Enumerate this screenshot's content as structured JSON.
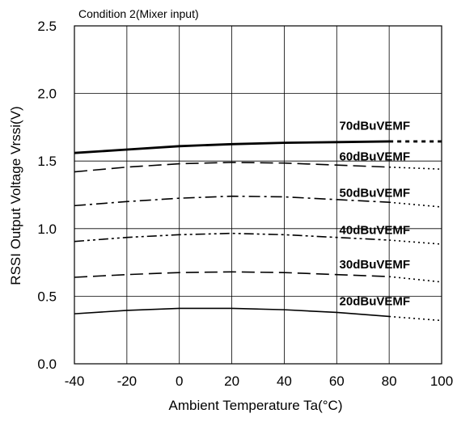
{
  "chart_data": {
    "type": "line",
    "title": "Condition 2(Mixer input)",
    "xlabel": "Ambient Temperature Ta(°C)",
    "ylabel": "RSSI Output Voltage Vrssi(V)",
    "xlim": [
      -40,
      100
    ],
    "ylim": [
      0.0,
      2.5
    ],
    "x_ticks": [
      "-40",
      "-20",
      "0",
      "20",
      "40",
      "60",
      "80",
      "100"
    ],
    "y_ticks": [
      "0.0",
      "0.5",
      "1.0",
      "1.5",
      "2.0",
      "2.5"
    ],
    "grid": true,
    "series": [
      {
        "name": "70dBuVEMF",
        "style": "solid-thick",
        "x": [
          -40,
          -20,
          0,
          20,
          40,
          60,
          80
        ],
        "y": [
          1.56,
          1.585,
          1.61,
          1.625,
          1.635,
          1.64,
          1.645
        ],
        "ext_x": [
          80,
          100
        ],
        "ext_y": [
          1.645,
          1.645
        ]
      },
      {
        "name": "60dBuVEMF",
        "style": "dash",
        "x": [
          -40,
          -20,
          0,
          20,
          40,
          60,
          80
        ],
        "y": [
          1.42,
          1.455,
          1.48,
          1.49,
          1.485,
          1.47,
          1.455
        ],
        "ext_x": [
          80,
          100
        ],
        "ext_y": [
          1.455,
          1.44
        ]
      },
      {
        "name": "50dBuVEMF",
        "style": "dash-dot",
        "x": [
          -40,
          -20,
          0,
          20,
          40,
          60,
          80
        ],
        "y": [
          1.17,
          1.2,
          1.225,
          1.24,
          1.235,
          1.215,
          1.195
        ],
        "ext_x": [
          80,
          100
        ],
        "ext_y": [
          1.195,
          1.16
        ]
      },
      {
        "name": "40dBuVEMF",
        "style": "dash-dot-dot",
        "x": [
          -40,
          -20,
          0,
          20,
          40,
          60,
          80
        ],
        "y": [
          0.905,
          0.935,
          0.955,
          0.965,
          0.955,
          0.935,
          0.915
        ],
        "ext_x": [
          80,
          100
        ],
        "ext_y": [
          0.915,
          0.885
        ]
      },
      {
        "name": "30dBuVEMF",
        "style": "dash",
        "x": [
          -40,
          -20,
          0,
          20,
          40,
          60,
          80
        ],
        "y": [
          0.64,
          0.66,
          0.675,
          0.68,
          0.675,
          0.66,
          0.645
        ],
        "ext_x": [
          80,
          100
        ],
        "ext_y": [
          0.645,
          0.605
        ]
      },
      {
        "name": "20dBuVEMF",
        "style": "solid-thin",
        "x": [
          -40,
          -20,
          0,
          20,
          40,
          60,
          80
        ],
        "y": [
          0.37,
          0.395,
          0.41,
          0.41,
          0.4,
          0.38,
          0.35
        ],
        "ext_x": [
          80,
          100
        ],
        "ext_y": [
          0.35,
          0.32
        ]
      }
    ],
    "labels": [
      {
        "text": "70dBuVEMF",
        "x": 61,
        "y": 1.76
      },
      {
        "text": "60dBuVEMF",
        "x": 61,
        "y": 1.535
      },
      {
        "text": "50dBuVEMF",
        "x": 61,
        "y": 1.265
      },
      {
        "text": "40dBuVEMF",
        "x": 61,
        "y": 0.99
      },
      {
        "text": "30dBuVEMF",
        "x": 61,
        "y": 0.735
      },
      {
        "text": "20dBuVEMF",
        "x": 61,
        "y": 0.465
      }
    ]
  }
}
